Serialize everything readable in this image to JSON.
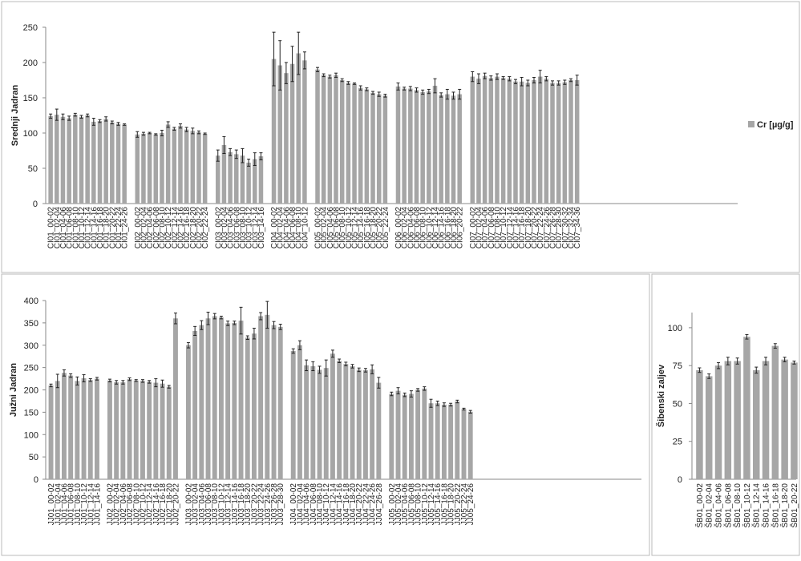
{
  "legend": {
    "label": "Cr [µg/g]",
    "color": "#a6a6a6"
  },
  "chart_data": [
    {
      "type": "bar",
      "ylabel": "Srednji Jadran",
      "ylim": [
        0,
        250
      ],
      "yticks": [
        0,
        50,
        100,
        150,
        200,
        250
      ],
      "groups": [
        {
          "categories": [
            "CI01_00-02",
            "CI01_02-04",
            "CI01_04-06",
            "CI01_06-08",
            "CI01_08-10",
            "CI01_10-12",
            "CI01_12-14",
            "CI01_14-16",
            "CI01_16-18",
            "CI01_18-20",
            "CI01_20-22",
            "CI01_22-24",
            "CI01_24-26"
          ],
          "values": [
            124,
            126,
            123,
            121,
            126,
            123,
            125,
            116,
            117,
            120,
            115,
            113,
            112
          ],
          "errors": [
            3,
            8,
            4,
            3,
            2,
            2,
            2,
            5,
            2,
            3,
            2,
            2,
            1
          ]
        },
        {
          "categories": [
            "CI02_00-02",
            "CI02_02-04",
            "CI02_04-06",
            "CI02_06-08",
            "CI02_08-10",
            "CI02_10-12",
            "CI02_12-14",
            "CI02_14-16",
            "CI02_16-18",
            "CI02_18-20",
            "CI02_20-22",
            "CI02_22-24"
          ],
          "values": [
            98,
            99,
            100,
            98,
            100,
            112,
            106,
            110,
            105,
            103,
            101,
            99
          ],
          "errors": [
            4,
            2,
            1,
            1,
            4,
            4,
            2,
            3,
            3,
            4,
            2,
            1
          ]
        },
        {
          "categories": [
            "CI03_00-02",
            "CI03_02-04",
            "CI03_04-06",
            "CI03_06-08",
            "CI03_08-10",
            "CI03_10-12",
            "CI03_12-14",
            "CI03_14-16"
          ],
          "values": [
            68,
            83,
            73,
            70,
            68,
            58,
            63,
            67
          ],
          "errors": [
            8,
            12,
            5,
            6,
            10,
            5,
            9,
            5
          ]
        },
        {
          "categories": [
            "CI04_00-02",
            "CI04_02-04",
            "CI04_04-06",
            "CI04_06-08",
            "CI04_08-10",
            "CI04_10-12"
          ],
          "values": [
            205,
            196,
            185,
            198,
            213,
            203
          ],
          "errors": [
            38,
            35,
            15,
            25,
            30,
            12
          ]
        },
        {
          "categories": [
            "CI05_00-02",
            "CI05_02-04",
            "CI05_04-06",
            "CI05_06-08",
            "CI05_08-10",
            "CI05_10-12",
            "CI05_12-14",
            "CI05_14-16",
            "CI05_16-18",
            "CI05_18-20",
            "CI05_20-22",
            "CI05_22-24"
          ],
          "values": [
            190,
            182,
            180,
            182,
            175,
            171,
            170,
            164,
            162,
            157,
            155,
            153
          ],
          "errors": [
            3,
            2,
            2,
            3,
            2,
            2,
            1,
            3,
            2,
            2,
            3,
            2
          ]
        },
        {
          "categories": [
            "CI06_00-02",
            "CI06_02-04",
            "CI06_04-06",
            "CI06_06-08",
            "CI06_08-10",
            "CI06_10-12",
            "CI06_12-14",
            "CI06_14-16",
            "CI06_16-18",
            "CI06_18-20",
            "CI06_20-22"
          ],
          "values": [
            166,
            163,
            163,
            161,
            158,
            159,
            167,
            154,
            155,
            153,
            155
          ],
          "errors": [
            5,
            2,
            3,
            3,
            3,
            3,
            10,
            3,
            7,
            5,
            7
          ]
        },
        {
          "categories": [
            "CI07_00-02",
            "CI07_02-04",
            "CI07_04-06",
            "CI07_06-08",
            "CI07_08-10",
            "CI07_10-12",
            "CI07_12-14",
            "CI07_14-16",
            "CI07_16-18",
            "CI07_18-20",
            "CI07_20-22",
            "CI07_22-24",
            "CI07_24-26",
            "CI07_26-28",
            "CI07_28-30",
            "CI07_30-32",
            "CI07_32-34",
            "CI07_34-36"
          ],
          "values": [
            180,
            177,
            181,
            178,
            180,
            178,
            177,
            173,
            173,
            171,
            175,
            180,
            177,
            171,
            171,
            172,
            175,
            175
          ],
          "errors": [
            7,
            7,
            4,
            3,
            4,
            2,
            3,
            3,
            6,
            4,
            4,
            9,
            3,
            3,
            3,
            3,
            2,
            7
          ]
        }
      ]
    },
    {
      "type": "bar",
      "ylabel": "Južni Jadran",
      "ylim": [
        0,
        400
      ],
      "yticks": [
        0,
        50,
        100,
        150,
        200,
        250,
        300,
        350,
        400
      ],
      "groups": [
        {
          "categories": [
            "JJ01_00-02",
            "JJ01_02-04",
            "JJ01_04-06",
            "JJ01_06-08",
            "JJ01_08-10",
            "JJ01_10-12",
            "JJ01_12-14",
            "JJ01_14-16"
          ],
          "values": [
            210,
            220,
            238,
            232,
            220,
            226,
            222,
            225
          ],
          "errors": [
            3,
            15,
            7,
            4,
            9,
            8,
            3,
            3
          ]
        },
        {
          "categories": [
            "JJ02_00-02",
            "JJ02_02-04",
            "JJ02_04-06",
            "JJ02_06-08",
            "JJ02_08-10",
            "JJ02_10-12",
            "JJ02_12-14",
            "JJ02_14-16",
            "JJ02_16-18",
            "JJ02_18-20",
            "JJ02_20-22"
          ],
          "values": [
            221,
            217,
            217,
            224,
            221,
            220,
            218,
            216,
            214,
            207,
            360
          ],
          "errors": [
            3,
            4,
            4,
            3,
            2,
            3,
            3,
            9,
            8,
            3,
            12
          ]
        },
        {
          "categories": [
            "JJ03_00-02",
            "JJ03_02-04",
            "JJ03_04-06",
            "JJ03_06-08",
            "JJ03_08-10",
            "JJ03_10-12",
            "JJ03_12-14",
            "JJ03_14-16",
            "JJ03_16-18",
            "JJ03_18-20",
            "JJ03_20-22",
            "JJ03_22-24",
            "JJ03_24-26",
            "JJ03_26-28",
            "JJ03_28-30"
          ],
          "values": [
            300,
            332,
            345,
            360,
            365,
            362,
            349,
            350,
            355,
            317,
            326,
            365,
            368,
            345,
            341
          ],
          "errors": [
            6,
            10,
            10,
            14,
            6,
            3,
            5,
            4,
            30,
            4,
            12,
            8,
            30,
            8,
            6
          ]
        },
        {
          "categories": [
            "JJ04_00-02",
            "JJ04_02-04",
            "JJ04_04-06",
            "JJ04_06-08",
            "JJ04_08-10",
            "JJ04_10-12",
            "JJ04_12-14",
            "JJ04_14-16",
            "JJ04_16-18",
            "JJ04_18-20",
            "JJ04_20-22",
            "JJ04_22-24",
            "JJ04_24-26",
            "JJ04_26-28"
          ],
          "values": [
            287,
            300,
            255,
            253,
            245,
            249,
            281,
            265,
            258,
            253,
            245,
            244,
            246,
            216
          ],
          "errors": [
            5,
            10,
            12,
            10,
            8,
            18,
            8,
            4,
            4,
            4,
            4,
            4,
            10,
            12
          ]
        },
        {
          "categories": [
            "JJ05_00-02",
            "JJ05_02-04",
            "JJ05_04-06",
            "JJ05_06-08",
            "JJ05_08-10",
            "JJ05_10-12",
            "JJ05_12-14",
            "JJ05_14-16",
            "JJ05_16-18",
            "JJ05_18-20",
            "JJ05_20-22",
            "JJ05_22-24",
            "JJ05_24-26"
          ],
          "values": [
            191,
            198,
            189,
            191,
            200,
            203,
            170,
            170,
            167,
            167,
            174,
            157,
            151
          ],
          "errors": [
            4,
            7,
            4,
            7,
            3,
            4,
            9,
            5,
            4,
            3,
            3,
            2,
            3
          ]
        }
      ]
    },
    {
      "type": "bar",
      "ylabel": "Šibenski zaljev",
      "ylim": [
        0,
        110
      ],
      "yticks": [
        0,
        25,
        50,
        75,
        100
      ],
      "groups": [
        {
          "categories": [
            "ŠB01_00-02",
            "ŠB01_02-04",
            "ŠB01_04-06",
            "ŠB01_06-08",
            "ŠB01_08-10",
            "ŠB01_10-12",
            "ŠB01_12-14",
            "ŠB01_14-16",
            "ŠB01_16-18",
            "ŠB01_18-20",
            "ŠB01_20-22"
          ],
          "values": [
            72,
            68,
            75,
            78,
            78,
            94,
            72,
            78,
            88,
            79,
            77
          ],
          "errors": [
            1.5,
            1.5,
            2,
            2.5,
            2,
            1.5,
            2,
            2.5,
            1.5,
            1.5,
            1
          ]
        }
      ]
    }
  ]
}
